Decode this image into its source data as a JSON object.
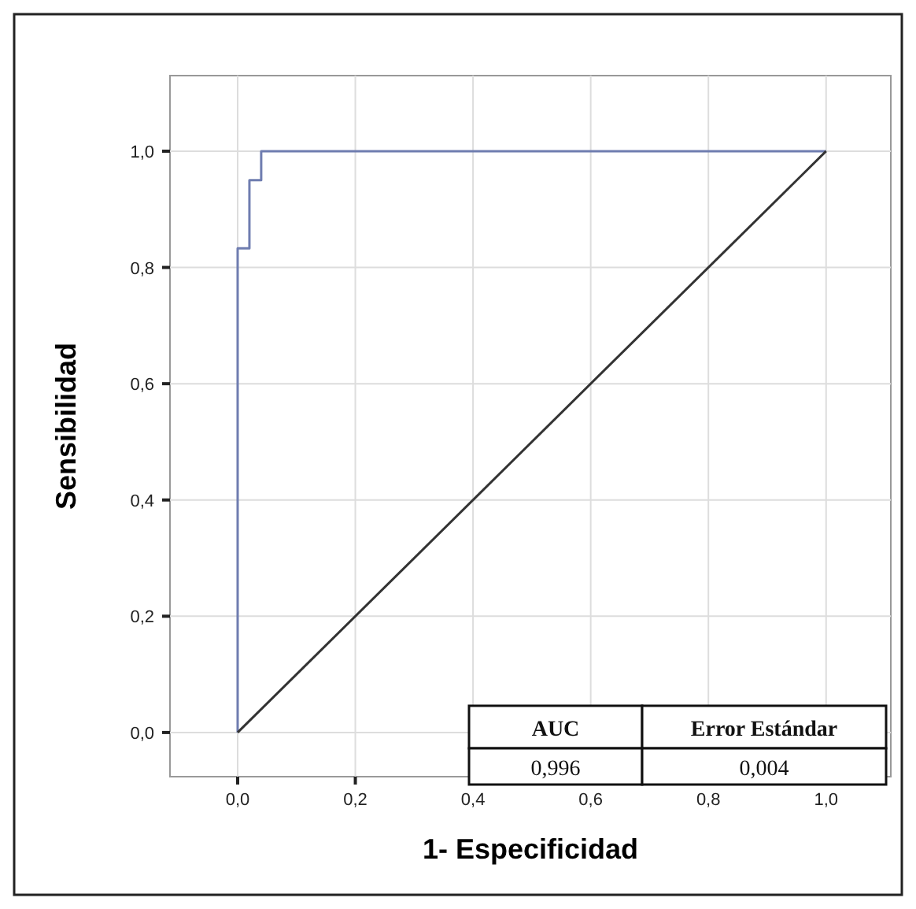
{
  "chart_data": {
    "type": "line",
    "xlabel": "1- Especificidad",
    "ylabel": "Sensibilidad",
    "xlim": [
      -0.115,
      1.11
    ],
    "ylim": [
      -0.076,
      1.13
    ],
    "xticks": [
      {
        "value": 0,
        "label": "0,0"
      },
      {
        "value": 0.2,
        "label": "0,2"
      },
      {
        "value": 0.4,
        "label": "0,4"
      },
      {
        "value": 0.6,
        "label": "0,6"
      },
      {
        "value": 0.8,
        "label": "0,8"
      },
      {
        "value": 1,
        "label": "1,0"
      }
    ],
    "yticks": [
      {
        "value": 0,
        "label": "0,0"
      },
      {
        "value": 0.2,
        "label": "0,2"
      },
      {
        "value": 0.4,
        "label": "0,4"
      },
      {
        "value": 0.6,
        "label": "0,6"
      },
      {
        "value": 0.8,
        "label": "0,8"
      },
      {
        "value": 1,
        "label": "1,0"
      }
    ],
    "grid": true,
    "marker": "none",
    "line_style": "solid",
    "series": [
      {
        "color": "#6f7db0",
        "x": [
          0,
          0,
          0.02,
          0.02,
          0.04,
          0.04,
          1
        ],
        "values": [
          0,
          0.833,
          0.833,
          0.95,
          0.95,
          1,
          1
        ]
      },
      {
        "color": "#333333",
        "x": [
          0,
          1
        ],
        "values": [
          0,
          1
        ]
      }
    ],
    "annotations": [
      "AUC",
      "Error Estándar",
      "0,996",
      "0,004"
    ]
  }
}
